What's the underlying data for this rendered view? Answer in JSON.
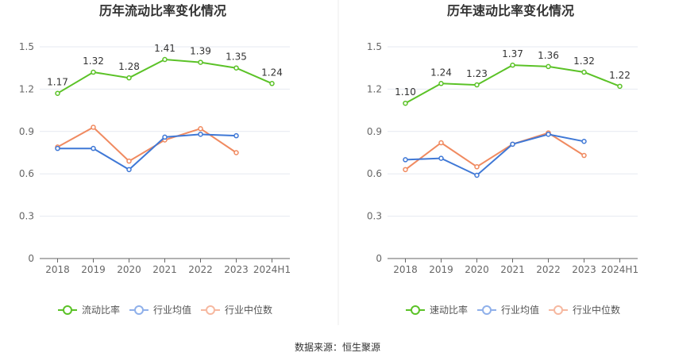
{
  "source": "数据来源：恒生聚源",
  "colors": {
    "main": "#5bc227",
    "avg": "#3f78d6",
    "median": "#f08a60",
    "grid": "#e6e9f0",
    "axis": "#666666"
  },
  "chart_data": [
    {
      "type": "line",
      "title": "历年流动比率变化情况",
      "categories": [
        "2018",
        "2019",
        "2020",
        "2021",
        "2022",
        "2023",
        "2024H1"
      ],
      "ylim": [
        0,
        1.5
      ],
      "yticks": [
        "0",
        "0.3",
        "0.6",
        "0.9",
        "1.2",
        "1.5"
      ],
      "grid": true,
      "legend_position": "bottom",
      "series": [
        {
          "name": "流动比率",
          "values": [
            1.17,
            1.32,
            1.28,
            1.41,
            1.39,
            1.35,
            1.24
          ],
          "labels": [
            "1.17",
            "1.32",
            "1.28",
            "1.41",
            "1.39",
            "1.35",
            "1.24"
          ]
        },
        {
          "name": "行业均值",
          "values": [
            0.78,
            0.78,
            0.63,
            0.86,
            0.88,
            0.87,
            null
          ]
        },
        {
          "name": "行业中位数",
          "values": [
            0.79,
            0.93,
            0.69,
            0.84,
            0.92,
            0.75,
            null
          ]
        }
      ]
    },
    {
      "type": "line",
      "title": "历年速动比率变化情况",
      "categories": [
        "2018",
        "2019",
        "2020",
        "2021",
        "2022",
        "2023",
        "2024H1"
      ],
      "ylim": [
        0,
        1.5
      ],
      "yticks": [
        "0",
        "0.3",
        "0.6",
        "0.9",
        "1.2",
        "1.5"
      ],
      "grid": true,
      "legend_position": "bottom",
      "series": [
        {
          "name": "速动比率",
          "values": [
            1.1,
            1.24,
            1.23,
            1.37,
            1.36,
            1.32,
            1.22
          ],
          "labels": [
            "1.10",
            "1.24",
            "1.23",
            "1.37",
            "1.36",
            "1.32",
            "1.22"
          ]
        },
        {
          "name": "行业均值",
          "values": [
            0.7,
            0.71,
            0.59,
            0.81,
            0.88,
            0.83,
            null
          ]
        },
        {
          "name": "行业中位数",
          "values": [
            0.63,
            0.82,
            0.65,
            0.81,
            0.89,
            0.73,
            null
          ]
        }
      ]
    }
  ]
}
